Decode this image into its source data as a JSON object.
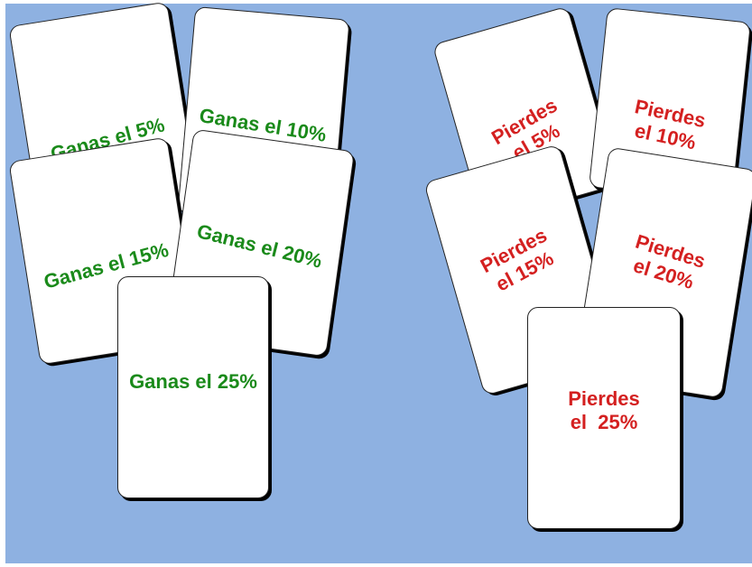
{
  "background_color": "#8eb1e1",
  "win_color": "#1a8a1a",
  "lose_color": "#d42020",
  "gain_cards": [
    {
      "text": "Ganas el 5%"
    },
    {
      "text": "Ganas el 10%"
    },
    {
      "text": "Ganas el 15%"
    },
    {
      "text": "Ganas el 20%"
    },
    {
      "text": "Ganas el 25%"
    }
  ],
  "loss_cards": [
    {
      "line1": "Pierdes",
      "line2": "el 5%"
    },
    {
      "line1": "Pierdes",
      "line2": "el 10%"
    },
    {
      "line1": "Pierdes",
      "line2": "el 15%"
    },
    {
      "line1": "Pierdes",
      "line2": "el 20%"
    },
    {
      "line1": "Pierdes",
      "line2": "el  25%"
    }
  ]
}
